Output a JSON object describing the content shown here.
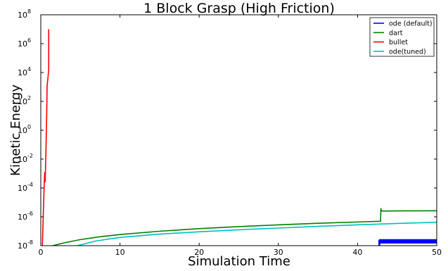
{
  "chart_data": {
    "type": "line",
    "title": "1 Block Grasp (High Friction)",
    "xlabel": "Simulation Time",
    "ylabel": "Kinetic Energy",
    "xlim": [
      0,
      50
    ],
    "ylim_log10": [
      -8,
      8
    ],
    "yscale": "log",
    "grid": false,
    "legend_placement": "top-right",
    "x_ticks": [
      "0",
      "10",
      "20",
      "30",
      "40",
      "50"
    ],
    "y_ticks": [
      {
        "base": "10",
        "exp": "8",
        "value": 8
      },
      {
        "base": "10",
        "exp": "6",
        "value": 6
      },
      {
        "base": "10",
        "exp": "4",
        "value": 4
      },
      {
        "base": "10",
        "exp": "2",
        "value": 2
      },
      {
        "base": "10",
        "exp": "0",
        "value": 0
      },
      {
        "base": "10",
        "exp": "-2",
        "value": -2
      },
      {
        "base": "10",
        "exp": "-4",
        "value": -4
      },
      {
        "base": "10",
        "exp": "-6",
        "value": -6
      },
      {
        "base": "10",
        "exp": "-8",
        "value": -8
      }
    ],
    "series": [
      {
        "name": "ode (default)",
        "color": "#0000ff",
        "points": [
          [
            42.7,
            -8.0
          ],
          [
            42.7,
            -7.6
          ],
          [
            42.8,
            -8.0
          ],
          [
            42.8,
            -7.55
          ]
        ],
        "band": {
          "x": [
            42.8,
            50
          ],
          "log10_low": -7.85,
          "log10_high": -7.55
        }
      },
      {
        "name": "dart",
        "color": "#008000",
        "points": [
          [
            1.5,
            -8.0
          ],
          [
            3,
            -7.8
          ],
          [
            5,
            -7.58
          ],
          [
            7.5,
            -7.38
          ],
          [
            10,
            -7.23
          ],
          [
            15,
            -7.0
          ],
          [
            20,
            -6.82
          ],
          [
            25,
            -6.68
          ],
          [
            30,
            -6.56
          ],
          [
            35,
            -6.45
          ],
          [
            40,
            -6.36
          ],
          [
            42.9,
            -6.31
          ],
          [
            42.95,
            -5.4
          ],
          [
            43.0,
            -5.6
          ],
          [
            46,
            -5.59
          ],
          [
            50,
            -5.58
          ]
        ]
      },
      {
        "name": "bullet",
        "color": "#ff0000",
        "points": [
          [
            0.2,
            -8.0
          ],
          [
            0.35,
            -5.2
          ],
          [
            0.45,
            -3.5
          ],
          [
            0.5,
            -2.9
          ],
          [
            0.55,
            -3.6
          ],
          [
            0.65,
            -1.5
          ],
          [
            0.75,
            1.2
          ],
          [
            0.8,
            3.1
          ],
          [
            0.9,
            3.6
          ],
          [
            1.0,
            4.2
          ],
          [
            1.0,
            7.0
          ]
        ]
      },
      {
        "name": "ode(tuned)",
        "color": "#00bfbf",
        "points": [
          [
            4.6,
            -8.0
          ],
          [
            7,
            -7.67
          ],
          [
            10,
            -7.43
          ],
          [
            15,
            -7.2
          ],
          [
            20,
            -7.04
          ],
          [
            25,
            -6.9
          ],
          [
            30,
            -6.78
          ],
          [
            35,
            -6.66
          ],
          [
            40,
            -6.56
          ],
          [
            45,
            -6.46
          ],
          [
            50,
            -6.38
          ]
        ]
      }
    ]
  }
}
